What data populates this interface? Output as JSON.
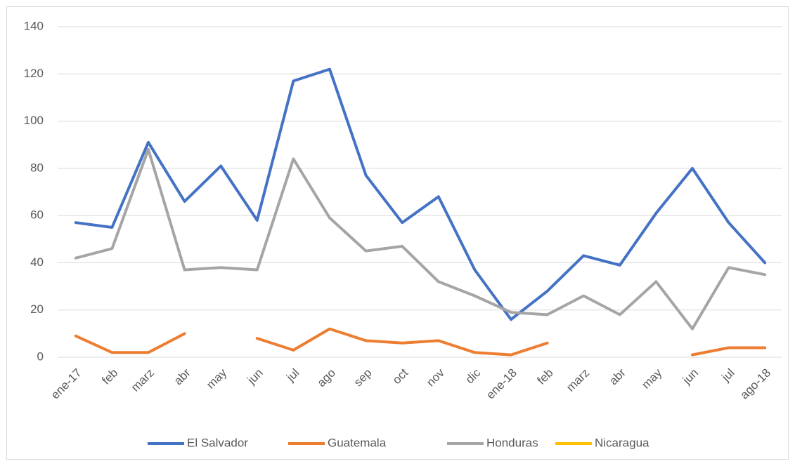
{
  "chart_data": {
    "type": "line",
    "categories": [
      "ene-17",
      "feb",
      "marz",
      "abr",
      "may",
      "jun",
      "jul",
      "ago",
      "sep",
      "oct",
      "nov",
      "dic",
      "ene-18",
      "feb",
      "marz",
      "abr",
      "may",
      "jun",
      "jul",
      "ago-18"
    ],
    "series": [
      {
        "name": "El Salvador",
        "color": "#4472c4",
        "values": [
          57,
          55,
          91,
          66,
          81,
          58,
          117,
          122,
          77,
          57,
          68,
          37,
          16,
          28,
          43,
          39,
          61,
          80,
          57,
          40
        ]
      },
      {
        "name": "Guatemala",
        "color": "#ed7d31",
        "values": [
          9,
          2,
          2,
          10,
          null,
          8,
          3,
          12,
          7,
          6,
          7,
          2,
          1,
          6,
          null,
          null,
          null,
          1,
          4,
          4
        ]
      },
      {
        "name": "Honduras",
        "color": "#a5a5a5",
        "values": [
          42,
          46,
          88,
          37,
          38,
          37,
          84,
          59,
          45,
          47,
          32,
          26,
          19,
          18,
          26,
          18,
          32,
          12,
          38,
          35
        ]
      },
      {
        "name": "Nicaragua",
        "color": "#ffc000",
        "values": [
          null,
          null,
          null,
          null,
          null,
          null,
          null,
          null,
          null,
          null,
          null,
          null,
          null,
          null,
          null,
          null,
          null,
          null,
          null,
          null
        ]
      }
    ],
    "ylim": [
      0,
      140
    ],
    "yticks": [
      0,
      20,
      40,
      60,
      80,
      100,
      120,
      140
    ],
    "grid": true,
    "legend": "bottom"
  }
}
